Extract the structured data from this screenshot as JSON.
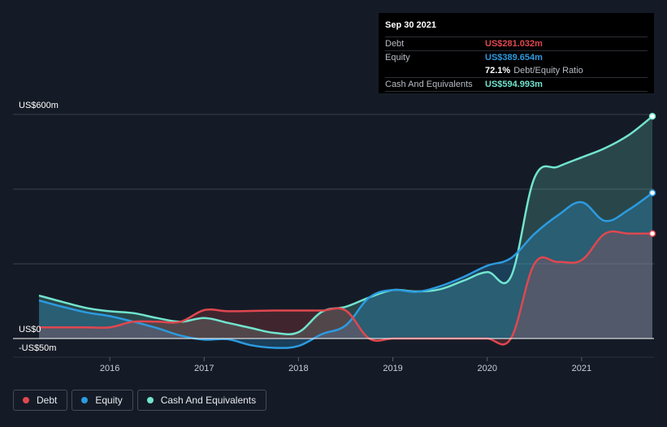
{
  "colors": {
    "debt": "#e0474f",
    "equity": "#2c9be0",
    "cash": "#72e4cf",
    "grid": "#3a3f4a",
    "zero": "#ffffff"
  },
  "tooltip": {
    "date": "Sep 30 2021",
    "debt_label": "Debt",
    "debt_value": "US$281.032m",
    "equity_label": "Equity",
    "equity_value": "US$389.654m",
    "ratio_value": "72.1%",
    "ratio_label": "Debt/Equity Ratio",
    "cash_label": "Cash And Equivalents",
    "cash_value": "US$594.993m"
  },
  "legend": {
    "debt": "Debt",
    "equity": "Equity",
    "cash": "Cash And Equivalents"
  },
  "chart_data": {
    "type": "area",
    "title": "",
    "xlabel": "",
    "ylabel": "",
    "ylim": [
      -50,
      600
    ],
    "xlim": [
      2015.25,
      2021.75
    ],
    "y_tick_labels": [
      {
        "value": 600,
        "label": "US$600m"
      },
      {
        "value": 0,
        "label": "US$0"
      },
      {
        "value": -50,
        "label": "-US$50m"
      }
    ],
    "gridlines": [
      600,
      400,
      200
    ],
    "x_ticks": [
      {
        "value": 2016,
        "label": "2016"
      },
      {
        "value": 2017,
        "label": "2017"
      },
      {
        "value": 2018,
        "label": "2018"
      },
      {
        "value": 2019,
        "label": "2019"
      },
      {
        "value": 2020,
        "label": "2020"
      },
      {
        "value": 2021,
        "label": "2021"
      }
    ],
    "series": [
      {
        "key": "cash",
        "name": "Cash And Equivalents",
        "x": [
          2015.25,
          2015.5,
          2015.75,
          2016.0,
          2016.25,
          2016.5,
          2016.75,
          2017.0,
          2017.25,
          2017.5,
          2017.75,
          2018.0,
          2018.25,
          2018.5,
          2018.75,
          2019.0,
          2019.25,
          2019.5,
          2019.75,
          2020.0,
          2020.25,
          2020.5,
          2020.75,
          2021.0,
          2021.25,
          2021.5,
          2021.75
        ],
        "values": [
          115,
          98,
          82,
          73,
          68,
          55,
          45,
          55,
          42,
          28,
          15,
          17,
          72,
          85,
          110,
          130,
          126,
          132,
          155,
          178,
          165,
          430,
          460,
          485,
          510,
          545,
          595
        ]
      },
      {
        "key": "equity",
        "name": "Equity",
        "x": [
          2015.25,
          2015.5,
          2015.75,
          2016.0,
          2016.25,
          2016.5,
          2016.75,
          2017.0,
          2017.25,
          2017.5,
          2017.75,
          2018.0,
          2018.25,
          2018.5,
          2018.75,
          2019.0,
          2019.25,
          2019.5,
          2019.75,
          2020.0,
          2020.25,
          2020.5,
          2020.75,
          2021.0,
          2021.25,
          2021.5,
          2021.75
        ],
        "values": [
          102,
          85,
          70,
          60,
          45,
          28,
          8,
          -3,
          -2,
          -18,
          -25,
          -20,
          12,
          35,
          110,
          130,
          125,
          140,
          165,
          195,
          215,
          280,
          330,
          365,
          315,
          345,
          390
        ]
      },
      {
        "key": "debt",
        "name": "Debt",
        "x": [
          2015.25,
          2015.5,
          2015.75,
          2016.0,
          2016.25,
          2016.5,
          2016.75,
          2017.0,
          2017.25,
          2017.5,
          2017.75,
          2018.0,
          2018.25,
          2018.5,
          2018.75,
          2019.0,
          2019.25,
          2019.5,
          2019.75,
          2020.0,
          2020.25,
          2020.5,
          2020.75,
          2021.0,
          2021.25,
          2021.5,
          2021.75
        ],
        "values": [
          30,
          30,
          30,
          30,
          45,
          45,
          45,
          76,
          73,
          74,
          75,
          75,
          75,
          75,
          0,
          0,
          0,
          0,
          0,
          0,
          0,
          200,
          205,
          210,
          281,
          281,
          281
        ]
      }
    ]
  }
}
